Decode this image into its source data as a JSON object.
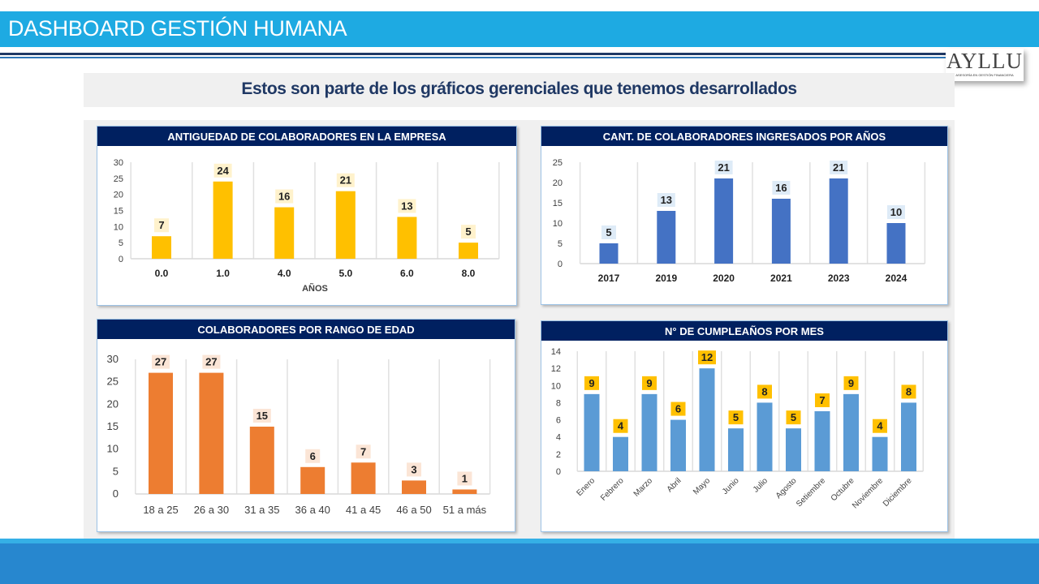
{
  "header": {
    "title": "DASHBOARD GESTIÓN HUMANA"
  },
  "logo": {
    "name": "AYLLU",
    "tagline": "ASESORÍA EN GESTIÓN FINANCIERA"
  },
  "subtitle": "Estos son parte de los gráficos gerenciales que tenemos desarrollados",
  "colors": {
    "header_blue": "#1eaae2",
    "navy": "#002060",
    "yellow": "#ffc000",
    "blue": "#4472c4",
    "orange": "#ed7d31",
    "lightblue": "#5b9bd5"
  },
  "chart_data": [
    {
      "type": "bar",
      "title": "ANTIGUEDAD DE COLABORADORES EN LA EMPRESA",
      "categories": [
        "0.0",
        "1.0",
        "4.0",
        "5.0",
        "6.0",
        "8.0"
      ],
      "values": [
        7,
        24,
        16,
        21,
        13,
        5
      ],
      "xlabel": "AÑOS",
      "ylabel": "",
      "ylim": [
        0,
        30
      ],
      "yticks": [
        0,
        5,
        10,
        15,
        20,
        25,
        30
      ],
      "color": "#ffc000",
      "label_bg": "#fff2cc"
    },
    {
      "type": "bar",
      "title": "CANT. DE COLABORADORES INGRESADOS  POR AÑOS",
      "categories": [
        "2017",
        "2019",
        "2020",
        "2021",
        "2023",
        "2024"
      ],
      "values": [
        5,
        13,
        21,
        16,
        21,
        10
      ],
      "xlabel": "",
      "ylabel": "",
      "ylim": [
        0,
        25
      ],
      "yticks": [
        0,
        5,
        10,
        15,
        20,
        25
      ],
      "color": "#4472c4",
      "label_bg": "#deebf7"
    },
    {
      "type": "bar",
      "title": "COLABORADORES POR RANGO DE EDAD",
      "categories": [
        "18 a 25",
        "26 a 30",
        "31 a 35",
        "36 a 40",
        "41 a 45",
        "46 a 50",
        "51 a más"
      ],
      "values": [
        27,
        27,
        15,
        6,
        7,
        3,
        1
      ],
      "xlabel": "",
      "ylabel": "",
      "ylim": [
        0,
        30
      ],
      "yticks": [
        0,
        5,
        10,
        15,
        20,
        25,
        30
      ],
      "color": "#ed7d31",
      "label_bg": "#fbe5d6"
    },
    {
      "type": "bar",
      "title": "N° DE CUMPLEAÑOS  POR MES",
      "categories": [
        "Enero",
        "Febrero",
        "Marzo",
        "Abril",
        "Mayo",
        "Junio",
        "Julio",
        "Agosto",
        "Setiembre",
        "Octubre",
        "Noviembre",
        "Diciembre"
      ],
      "values": [
        9,
        4,
        9,
        6,
        12,
        5,
        8,
        5,
        7,
        9,
        4,
        8
      ],
      "xlabel": "",
      "ylabel": "",
      "ylim": [
        0,
        14
      ],
      "yticks": [
        0,
        2,
        4,
        6,
        8,
        10,
        12,
        14
      ],
      "color": "#5b9bd5",
      "label_bg": "#ffc000"
    }
  ]
}
